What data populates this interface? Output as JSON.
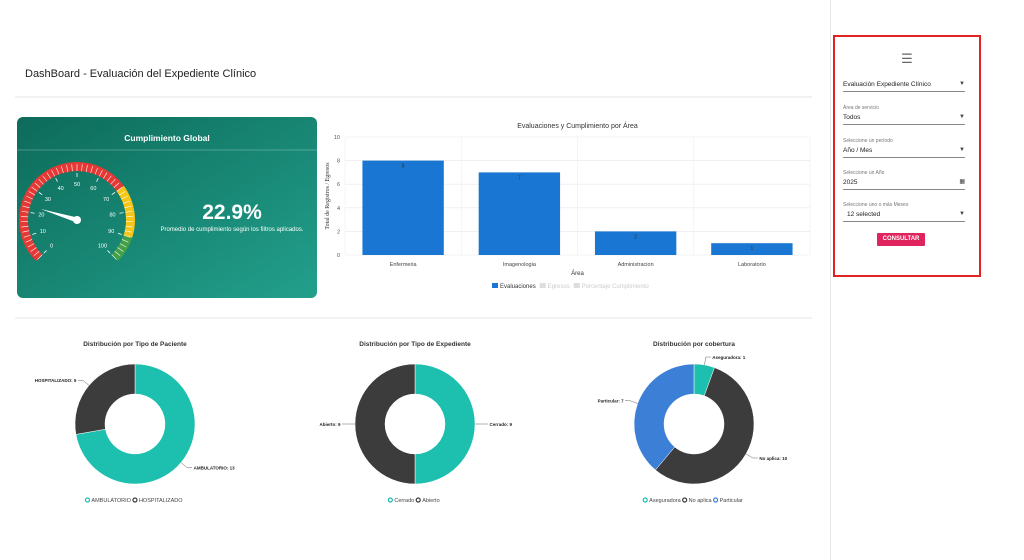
{
  "header": {
    "title": "DashBoard - Evaluación del Expediente Clínico"
  },
  "gauge": {
    "title": "Cumplimiento Global",
    "value": 22.9,
    "value_label": "22.9%",
    "description": "Promedio de cumplimiento según los filtros aplicados.",
    "range": [
      0,
      100
    ],
    "ticks": [
      0,
      10,
      20,
      30,
      40,
      50,
      60,
      70,
      80,
      90,
      100
    ],
    "bands": [
      {
        "from": 0,
        "to": 70,
        "color": "#e53935"
      },
      {
        "from": 70,
        "to": 90,
        "color": "#f5c518"
      },
      {
        "from": 90,
        "to": 100,
        "color": "#43a047"
      }
    ]
  },
  "chart_data": [
    {
      "type": "bar",
      "title": "Evaluaciones y Cumplimiento por Área",
      "x_label": "Área",
      "y_label": "Total de Registros / Egresos",
      "categories": [
        "Enfermeria",
        "Imagenologia",
        "Administracion",
        "Laboratorio"
      ],
      "series": [
        {
          "name": "Evaluaciones",
          "color": "#1976d2",
          "values": [
            8,
            7,
            2,
            1
          ]
        }
      ],
      "hidden_series": [
        "Egresos",
        "Porcentaje Cumplimiento"
      ],
      "ylim": [
        0,
        10
      ],
      "yticks": [
        0,
        2,
        4,
        6,
        8,
        10
      ],
      "grid": true
    },
    {
      "type": "donut",
      "title": "Distribución por Tipo de Paciente",
      "categories": [
        "AMBULATORIO",
        "HOSPITALIZADO"
      ],
      "values": [
        13,
        5
      ],
      "value_labels": [
        "AMBULATORIO: 13",
        "HOSPITALIZADO: 5"
      ],
      "colors": [
        "#1dbfae",
        "#3c3c3c"
      ]
    },
    {
      "type": "donut",
      "title": "Distribución por Tipo de Expediente",
      "categories": [
        "Cerrado",
        "Abierto"
      ],
      "values": [
        9,
        9
      ],
      "value_labels": [
        "Cerrado: 9",
        "Abierto: 9"
      ],
      "colors": [
        "#1dbfae",
        "#3c3c3c"
      ]
    },
    {
      "type": "donut",
      "title": "Distribución por cobertura",
      "categories": [
        "Aseguradora",
        "No aplica",
        "Particular"
      ],
      "values": [
        1,
        10,
        7
      ],
      "value_labels": [
        "Aseguradora: 1",
        "No aplica: 10",
        "Particular: 7"
      ],
      "colors": [
        "#1dbfae",
        "#3c3c3c",
        "#3b7fd6"
      ]
    }
  ],
  "sidebar": {
    "report": "Evaluación Expediente Clínico",
    "fields": [
      {
        "label": "Área de servicio",
        "value": "Todos"
      },
      {
        "label": "Seleccione un período",
        "value": "Año / Mes"
      },
      {
        "label": "Seleccione un Año",
        "value": "2025"
      },
      {
        "label": "Seleccione uno o más Meses",
        "value": "12 selected"
      }
    ],
    "button": "CONSULTAR"
  }
}
